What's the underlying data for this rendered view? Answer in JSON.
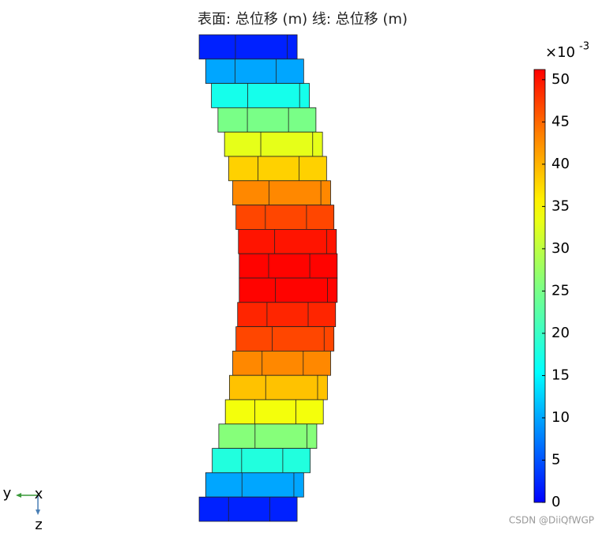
{
  "chart_data": {
    "type": "deformation",
    "title": "表面: 总位移 (m)  线: 总位移 (m)",
    "rows": [
      2,
      10,
      17,
      25,
      33,
      38,
      43,
      47,
      50,
      51,
      51,
      49,
      47,
      43,
      39,
      34,
      26,
      18,
      10,
      2
    ],
    "colorbar": {
      "lim": [
        0,
        51.2
      ],
      "ticks": [
        0,
        5,
        10,
        15,
        20,
        25,
        30,
        35,
        40,
        45,
        50
      ],
      "multiplier": "×10",
      "exponent": "-3"
    },
    "axes": {
      "y": "y",
      "x": "x",
      "z": "z"
    },
    "watermark": "CSDN @DiiQfWGP"
  }
}
